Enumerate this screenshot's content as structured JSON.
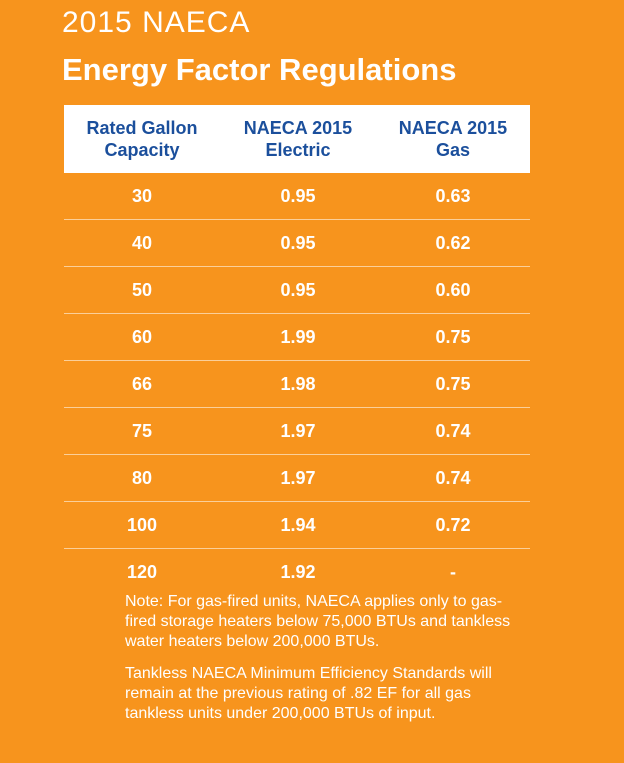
{
  "title_line1": "2015 NAECA",
  "title_line2": "Energy Factor Regulations",
  "table": {
    "headers": [
      [
        "Rated Gallon",
        "Capacity"
      ],
      [
        "NAECA 2015",
        "Electric"
      ],
      [
        "NAECA 2015",
        "Gas"
      ]
    ],
    "rows": [
      [
        "30",
        "0.95",
        "0.63"
      ],
      [
        "40",
        "0.95",
        "0.62"
      ],
      [
        "50",
        "0.95",
        "0.60"
      ],
      [
        "60",
        "1.99",
        "0.75"
      ],
      [
        "66",
        "1.98",
        "0.75"
      ],
      [
        "75",
        "1.97",
        "0.74"
      ],
      [
        "80",
        "1.97",
        "0.74"
      ],
      [
        "100",
        "1.94",
        "0.72"
      ],
      [
        "120",
        "1.92",
        "-"
      ]
    ]
  },
  "notes": [
    "Note: For gas-fired units, NAECA applies only to gas-fired storage heaters below 75,000 BTUs and tankless water heaters below 200,000 BTUs.",
    "Tankless NAECA Minimum Efficiency Standards will remain at the previous rating of .82 EF for all gas tankless units under 200,000 BTUs of input."
  ],
  "colors": {
    "background": "#F7941D",
    "header_text": "#1B4F9C",
    "header_bg": "#FFFFFF"
  }
}
